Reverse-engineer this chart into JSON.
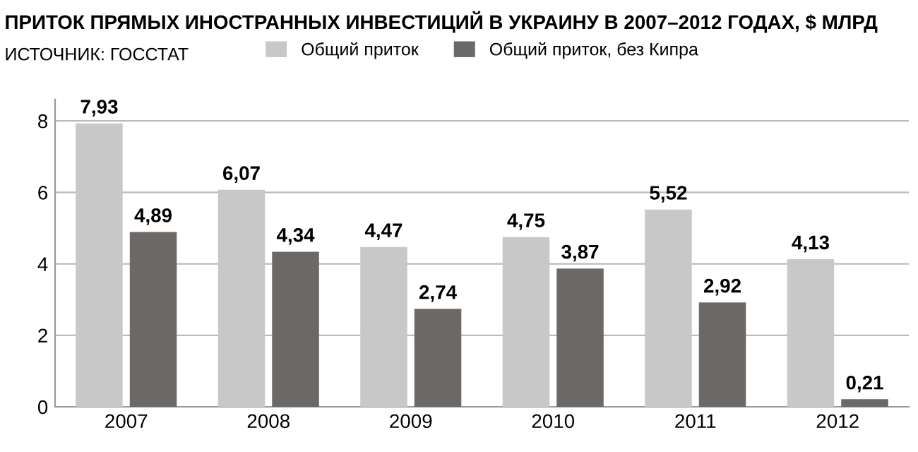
{
  "chart_data": {
    "type": "bar",
    "title": "ПРИТОК ПРЯМЫХ ИНОСТРАННЫХ ИНВЕСТИЦИЙ В УКРАИНУ В 2007–2012 ГОДАХ, $ МЛРД",
    "annotations": [
      "ИСТОЧНИК: ГОССТАТ"
    ],
    "categories": [
      "2007",
      "2008",
      "2009",
      "2010",
      "2011",
      "2012"
    ],
    "series": [
      {
        "name": "Общий приток",
        "color": "#c8c8c8",
        "values": [
          7.93,
          6.07,
          4.47,
          4.75,
          5.52,
          4.13
        ]
      },
      {
        "name": "Общий приток, без Кипра",
        "color": "#6b6866",
        "values": [
          4.89,
          4.34,
          2.74,
          3.87,
          2.92,
          0.21
        ]
      }
    ],
    "value_labels": [
      [
        "7,93",
        "6,07",
        "4,47",
        "4,75",
        "5,52",
        "4,13"
      ],
      [
        "4,89",
        "4,34",
        "2,74",
        "3,87",
        "2,92",
        "0,21"
      ]
    ],
    "ylim": [
      0,
      8.6
    ],
    "yticks": [
      0,
      2,
      4,
      6,
      8
    ],
    "grid": "y",
    "legend": "top"
  }
}
